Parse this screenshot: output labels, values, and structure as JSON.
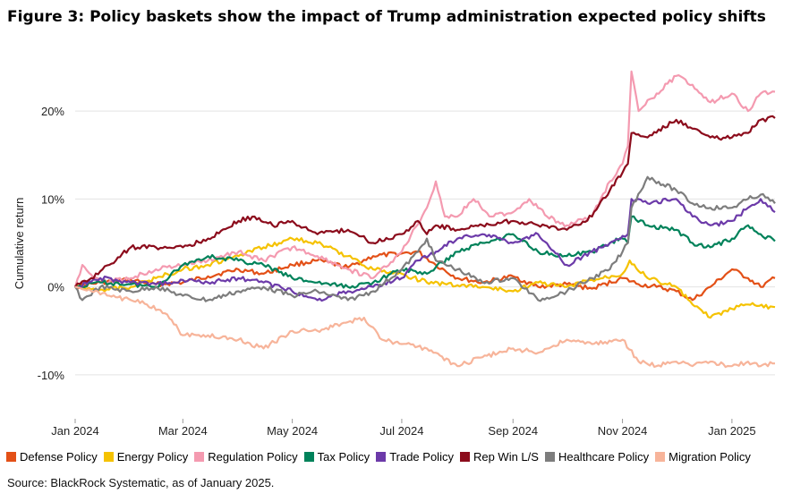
{
  "title": "Figure 3: Policy baskets show the impact of Trump administration expected policy shifts",
  "source": "Source: BlackRock Systematic, as of January 2025.",
  "chart_data": {
    "type": "line",
    "title": "Figure 3: Policy baskets show the impact of Trump administration expected policy shifts",
    "xlabel": "",
    "ylabel": "Cumulative return",
    "x_ticks": [
      "Jan 2024",
      "Mar 2024",
      "May 2024",
      "Jul 2024",
      "Sep 2024",
      "Nov 2024",
      "Jan 2025"
    ],
    "y_ticks": [
      {
        "value": 20,
        "label": "20%"
      },
      {
        "value": 10,
        "label": "10%"
      },
      {
        "value": 0,
        "label": "0%"
      },
      {
        "value": -10,
        "label": "-10%"
      }
    ],
    "ylim": [
      -15,
      25
    ],
    "xlim": [
      "2024-01-01",
      "2025-01-25"
    ],
    "grid": "horizontal",
    "legend_position": "bottom",
    "series": [
      {
        "name": "Defense Policy",
        "color": "#e35017",
        "values": [
          [
            "2024-01-01",
            0
          ],
          [
            "2024-01-15",
            0.5
          ],
          [
            "2024-02-01",
            0.8
          ],
          [
            "2024-02-15",
            0.3
          ],
          [
            "2024-03-01",
            0.5
          ],
          [
            "2024-03-15",
            1.2
          ],
          [
            "2024-04-01",
            2
          ],
          [
            "2024-04-15",
            1.5
          ],
          [
            "2024-05-01",
            2.5
          ],
          [
            "2024-05-15",
            3
          ],
          [
            "2024-06-01",
            2.2
          ],
          [
            "2024-06-15",
            3.5
          ],
          [
            "2024-07-01",
            3.8
          ],
          [
            "2024-07-10",
            4
          ],
          [
            "2024-07-20",
            2.5
          ],
          [
            "2024-08-01",
            1
          ],
          [
            "2024-08-15",
            0.5
          ],
          [
            "2024-09-01",
            1.2
          ],
          [
            "2024-09-15",
            0
          ],
          [
            "2024-10-01",
            0.3
          ],
          [
            "2024-10-15",
            -0.2
          ],
          [
            "2024-11-01",
            1
          ],
          [
            "2024-11-10",
            0.3
          ],
          [
            "2024-11-20",
            0
          ],
          [
            "2024-12-01",
            -0.5
          ],
          [
            "2024-12-10",
            -1.5
          ],
          [
            "2024-12-20",
            0
          ],
          [
            "2025-01-01",
            2
          ],
          [
            "2025-01-10",
            1
          ],
          [
            "2025-01-17",
            0
          ],
          [
            "2025-01-25",
            1
          ]
        ]
      },
      {
        "name": "Energy Policy",
        "color": "#f5c200",
        "values": [
          [
            "2024-01-01",
            0
          ],
          [
            "2024-01-15",
            -0.3
          ],
          [
            "2024-02-01",
            0
          ],
          [
            "2024-02-15",
            1
          ],
          [
            "2024-03-01",
            2
          ],
          [
            "2024-03-15",
            2.5
          ],
          [
            "2024-04-01",
            3.5
          ],
          [
            "2024-04-15",
            4.5
          ],
          [
            "2024-05-01",
            5.5
          ],
          [
            "2024-05-15",
            5
          ],
          [
            "2024-06-01",
            3.5
          ],
          [
            "2024-06-15",
            2
          ],
          [
            "2024-07-01",
            1.5
          ],
          [
            "2024-07-15",
            0.5
          ],
          [
            "2024-08-01",
            0.2
          ],
          [
            "2024-08-15",
            0
          ],
          [
            "2024-09-01",
            -0.5
          ],
          [
            "2024-09-15",
            0.5
          ],
          [
            "2024-10-01",
            0
          ],
          [
            "2024-10-15",
            0.8
          ],
          [
            "2024-11-01",
            1.5
          ],
          [
            "2024-11-05",
            3
          ],
          [
            "2024-11-15",
            1
          ],
          [
            "2024-12-01",
            0
          ],
          [
            "2024-12-10",
            -2
          ],
          [
            "2024-12-20",
            -3.5
          ],
          [
            "2025-01-01",
            -2.5
          ],
          [
            "2025-01-10",
            -2
          ],
          [
            "2025-01-25",
            -2.3
          ]
        ]
      },
      {
        "name": "Regulation Policy",
        "color": "#f49ab0",
        "values": [
          [
            "2024-01-01",
            0
          ],
          [
            "2024-01-05",
            2.5
          ],
          [
            "2024-01-15",
            0.5
          ],
          [
            "2024-02-01",
            1
          ],
          [
            "2024-02-15",
            2
          ],
          [
            "2024-03-01",
            2.5
          ],
          [
            "2024-03-15",
            3
          ],
          [
            "2024-04-01",
            4
          ],
          [
            "2024-04-15",
            3
          ],
          [
            "2024-05-01",
            4.5
          ],
          [
            "2024-05-15",
            3.5
          ],
          [
            "2024-06-01",
            2
          ],
          [
            "2024-06-15",
            1
          ],
          [
            "2024-07-01",
            4
          ],
          [
            "2024-07-15",
            9
          ],
          [
            "2024-07-20",
            12
          ],
          [
            "2024-07-25",
            8
          ],
          [
            "2024-08-01",
            8
          ],
          [
            "2024-08-10",
            10
          ],
          [
            "2024-08-20",
            8
          ],
          [
            "2024-09-01",
            8.5
          ],
          [
            "2024-09-10",
            10
          ],
          [
            "2024-09-20",
            8
          ],
          [
            "2024-10-01",
            7
          ],
          [
            "2024-10-15",
            8
          ],
          [
            "2024-10-25",
            12
          ],
          [
            "2024-11-01",
            14
          ],
          [
            "2024-11-04",
            16
          ],
          [
            "2024-11-06",
            24.5
          ],
          [
            "2024-11-10",
            20
          ],
          [
            "2024-11-20",
            22
          ],
          [
            "2024-12-01",
            24
          ],
          [
            "2024-12-10",
            23
          ],
          [
            "2024-12-20",
            21
          ],
          [
            "2025-01-01",
            22
          ],
          [
            "2025-01-10",
            20
          ],
          [
            "2025-01-17",
            22
          ],
          [
            "2025-01-25",
            22.2
          ]
        ]
      },
      {
        "name": "Tax Policy",
        "color": "#00825a",
        "values": [
          [
            "2024-01-01",
            0
          ],
          [
            "2024-01-15",
            0.5
          ],
          [
            "2024-02-01",
            0.3
          ],
          [
            "2024-02-15",
            0
          ],
          [
            "2024-03-01",
            2.5
          ],
          [
            "2024-03-15",
            3.5
          ],
          [
            "2024-04-01",
            3
          ],
          [
            "2024-04-15",
            2.5
          ],
          [
            "2024-05-01",
            1
          ],
          [
            "2024-05-15",
            0.5
          ],
          [
            "2024-06-01",
            0
          ],
          [
            "2024-06-15",
            0.5
          ],
          [
            "2024-07-01",
            2
          ],
          [
            "2024-07-15",
            1.5
          ],
          [
            "2024-08-01",
            4
          ],
          [
            "2024-08-15",
            5
          ],
          [
            "2024-09-01",
            6
          ],
          [
            "2024-09-15",
            4
          ],
          [
            "2024-10-01",
            3.5
          ],
          [
            "2024-10-15",
            4
          ],
          [
            "2024-10-25",
            5
          ],
          [
            "2024-11-01",
            5.5
          ],
          [
            "2024-11-04",
            5
          ],
          [
            "2024-11-06",
            8
          ],
          [
            "2024-11-15",
            7
          ],
          [
            "2024-12-01",
            6.5
          ],
          [
            "2024-12-10",
            5
          ],
          [
            "2024-12-20",
            4.5
          ],
          [
            "2025-01-01",
            5.5
          ],
          [
            "2025-01-10",
            7
          ],
          [
            "2025-01-17",
            6
          ],
          [
            "2025-01-25",
            5.2
          ]
        ]
      },
      {
        "name": "Trade Policy",
        "color": "#6c3aa9",
        "values": [
          [
            "2024-01-01",
            0
          ],
          [
            "2024-01-15",
            1
          ],
          [
            "2024-02-01",
            0.5
          ],
          [
            "2024-02-15",
            0.3
          ],
          [
            "2024-03-01",
            0.8
          ],
          [
            "2024-03-15",
            0.5
          ],
          [
            "2024-04-01",
            1
          ],
          [
            "2024-04-15",
            0.5
          ],
          [
            "2024-05-01",
            -0.5
          ],
          [
            "2024-05-15",
            -1.5
          ],
          [
            "2024-06-01",
            -0.5
          ],
          [
            "2024-06-15",
            0
          ],
          [
            "2024-07-01",
            1
          ],
          [
            "2024-07-10",
            3
          ],
          [
            "2024-07-20",
            4
          ],
          [
            "2024-08-01",
            5.5
          ],
          [
            "2024-08-15",
            6
          ],
          [
            "2024-09-01",
            5
          ],
          [
            "2024-09-15",
            6
          ],
          [
            "2024-10-01",
            2.5
          ],
          [
            "2024-10-15",
            4
          ],
          [
            "2024-10-25",
            5
          ],
          [
            "2024-11-01",
            5.8
          ],
          [
            "2024-11-04",
            6
          ],
          [
            "2024-11-06",
            10
          ],
          [
            "2024-11-15",
            9.5
          ],
          [
            "2024-12-01",
            10
          ],
          [
            "2024-12-10",
            8
          ],
          [
            "2024-12-20",
            7
          ],
          [
            "2025-01-01",
            7.5
          ],
          [
            "2025-01-10",
            9
          ],
          [
            "2025-01-17",
            10
          ],
          [
            "2025-01-25",
            8.5
          ]
        ]
      },
      {
        "name": "Rep Win L/S",
        "color": "#8c0c1c",
        "values": [
          [
            "2024-01-01",
            0
          ],
          [
            "2024-01-10",
            1
          ],
          [
            "2024-01-20",
            2.5
          ],
          [
            "2024-02-01",
            4.5
          ],
          [
            "2024-02-15",
            4.5
          ],
          [
            "2024-03-01",
            4.5
          ],
          [
            "2024-03-15",
            5.5
          ],
          [
            "2024-04-01",
            7.5
          ],
          [
            "2024-04-10",
            8
          ],
          [
            "2024-04-20",
            7
          ],
          [
            "2024-05-01",
            7.5
          ],
          [
            "2024-05-15",
            6
          ],
          [
            "2024-06-01",
            6.5
          ],
          [
            "2024-06-15",
            5
          ],
          [
            "2024-07-01",
            6
          ],
          [
            "2024-07-10",
            7.5
          ],
          [
            "2024-07-15",
            6
          ],
          [
            "2024-07-20",
            7
          ],
          [
            "2024-08-01",
            6.5
          ],
          [
            "2024-08-15",
            7
          ],
          [
            "2024-09-01",
            7.5
          ],
          [
            "2024-09-15",
            7
          ],
          [
            "2024-10-01",
            6.5
          ],
          [
            "2024-10-15",
            8
          ],
          [
            "2024-10-25",
            11
          ],
          [
            "2024-11-01",
            13
          ],
          [
            "2024-11-04",
            14
          ],
          [
            "2024-11-06",
            17.5
          ],
          [
            "2024-11-15",
            17
          ],
          [
            "2024-12-01",
            19
          ],
          [
            "2024-12-10",
            18
          ],
          [
            "2024-12-20",
            17
          ],
          [
            "2025-01-01",
            17
          ],
          [
            "2025-01-10",
            17.5
          ],
          [
            "2025-01-17",
            19
          ],
          [
            "2025-01-25",
            19.2
          ]
        ]
      },
      {
        "name": "Healthcare Policy",
        "color": "#7d7d7d",
        "values": [
          [
            "2024-01-01",
            0
          ],
          [
            "2024-01-05",
            -1.5
          ],
          [
            "2024-01-15",
            0
          ],
          [
            "2024-02-01",
            -0.5
          ],
          [
            "2024-02-15",
            0
          ],
          [
            "2024-03-01",
            -1
          ],
          [
            "2024-03-15",
            -1.5
          ],
          [
            "2024-04-01",
            -0.5
          ],
          [
            "2024-04-15",
            0
          ],
          [
            "2024-05-01",
            -1
          ],
          [
            "2024-05-15",
            -0.5
          ],
          [
            "2024-06-01",
            -1.5
          ],
          [
            "2024-06-15",
            -0.5
          ],
          [
            "2024-07-01",
            2
          ],
          [
            "2024-07-10",
            4
          ],
          [
            "2024-07-15",
            5.5
          ],
          [
            "2024-07-20",
            3
          ],
          [
            "2024-08-01",
            2
          ],
          [
            "2024-08-15",
            0.5
          ],
          [
            "2024-09-01",
            1
          ],
          [
            "2024-09-15",
            -1.5
          ],
          [
            "2024-10-01",
            -0.5
          ],
          [
            "2024-10-15",
            1
          ],
          [
            "2024-10-25",
            2
          ],
          [
            "2024-11-01",
            4
          ],
          [
            "2024-11-04",
            5
          ],
          [
            "2024-11-06",
            9
          ],
          [
            "2024-11-15",
            12.5
          ],
          [
            "2024-12-01",
            11
          ],
          [
            "2024-12-10",
            9.5
          ],
          [
            "2024-12-20",
            9
          ],
          [
            "2025-01-01",
            9
          ],
          [
            "2025-01-10",
            10
          ],
          [
            "2025-01-17",
            10.5
          ],
          [
            "2025-01-25",
            9.5
          ]
        ]
      },
      {
        "name": "Migration Policy",
        "color": "#f7b49a",
        "values": [
          [
            "2024-01-01",
            0
          ],
          [
            "2024-01-10",
            -0.5
          ],
          [
            "2024-01-20",
            -1
          ],
          [
            "2024-02-01",
            -1.5
          ],
          [
            "2024-02-10",
            -2
          ],
          [
            "2024-02-20",
            -3
          ],
          [
            "2024-03-01",
            -5.5
          ],
          [
            "2024-03-15",
            -5.5
          ],
          [
            "2024-04-01",
            -6
          ],
          [
            "2024-04-15",
            -7
          ],
          [
            "2024-05-01",
            -5
          ],
          [
            "2024-05-15",
            -5
          ],
          [
            "2024-06-01",
            -4
          ],
          [
            "2024-06-10",
            -3.5
          ],
          [
            "2024-06-20",
            -6
          ],
          [
            "2024-07-01",
            -6.5
          ],
          [
            "2024-07-15",
            -7
          ],
          [
            "2024-08-01",
            -9
          ],
          [
            "2024-08-15",
            -8
          ],
          [
            "2024-09-01",
            -7
          ],
          [
            "2024-09-15",
            -7.5
          ],
          [
            "2024-10-01",
            -6
          ],
          [
            "2024-10-15",
            -6.5
          ],
          [
            "2024-11-01",
            -6
          ],
          [
            "2024-11-10",
            -8.5
          ],
          [
            "2024-11-20",
            -9
          ],
          [
            "2024-12-01",
            -8.5
          ],
          [
            "2024-12-10",
            -9
          ],
          [
            "2024-12-20",
            -8.5
          ],
          [
            "2025-01-01",
            -9
          ],
          [
            "2025-01-10",
            -8.5
          ],
          [
            "2025-01-17",
            -9
          ],
          [
            "2025-01-25",
            -8.7
          ]
        ]
      }
    ]
  }
}
